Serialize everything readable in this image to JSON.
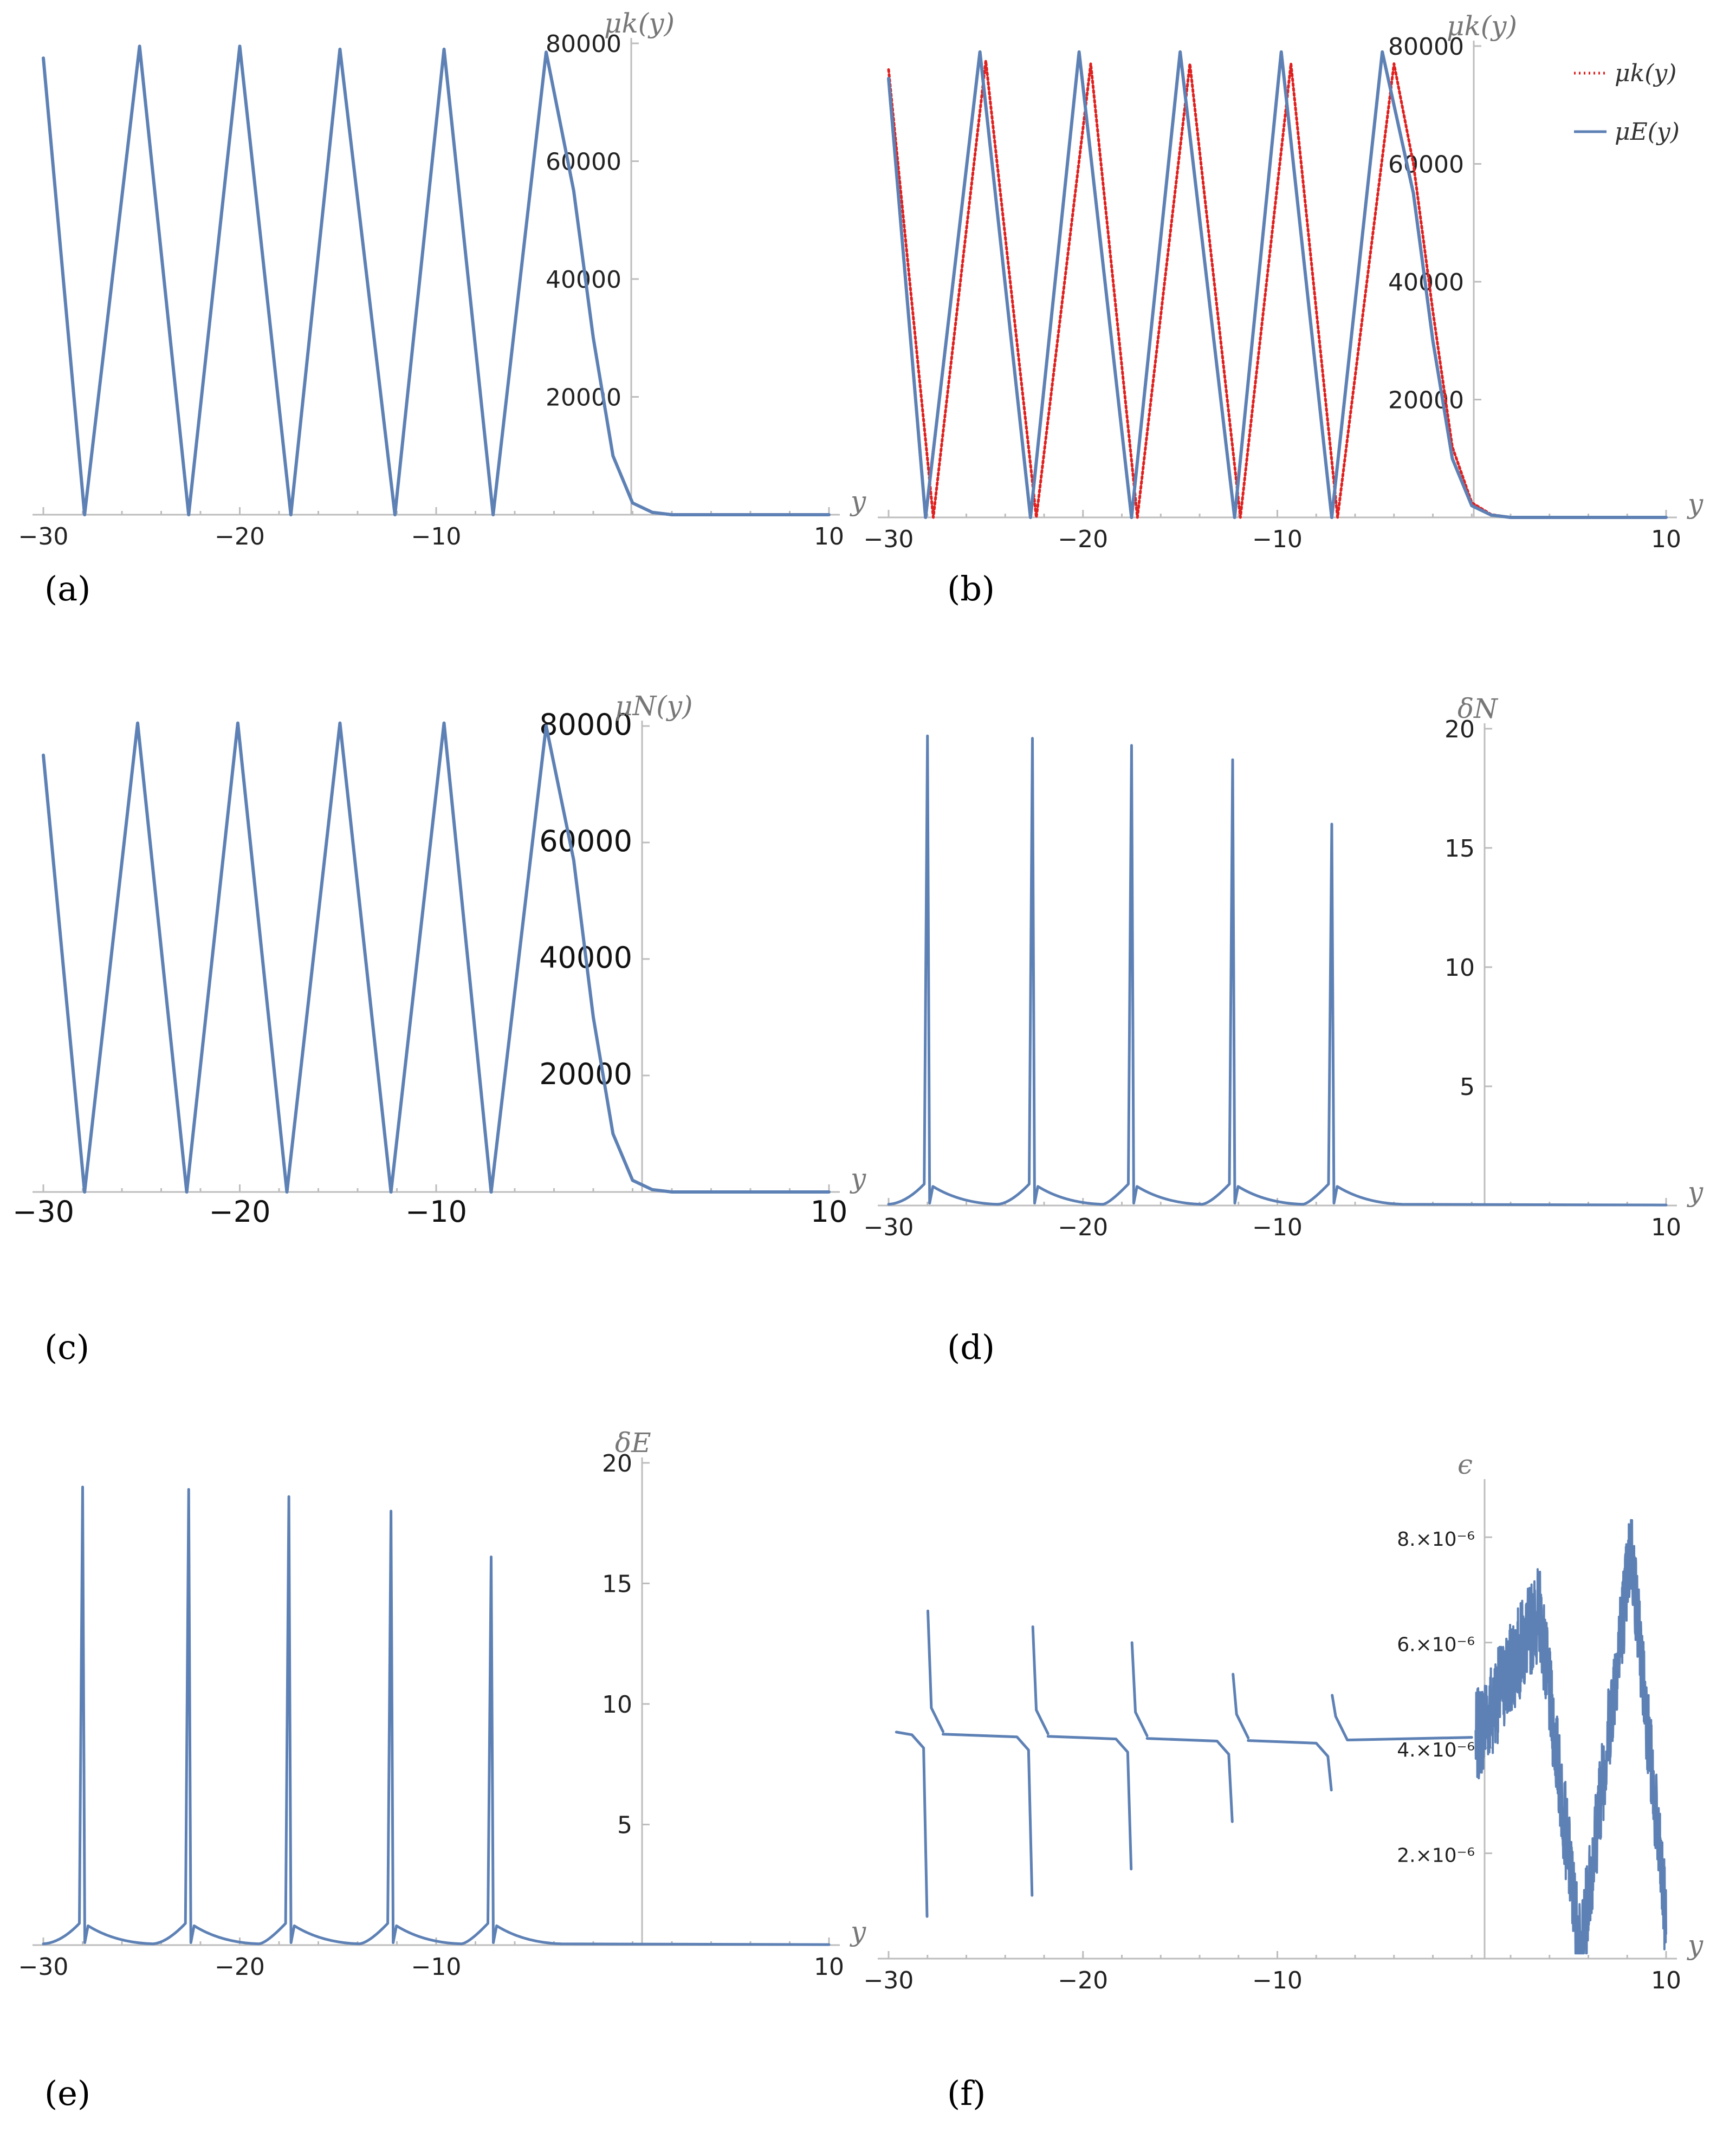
{
  "figure": {
    "panels": [
      {
        "id": "a",
        "label": "(a)",
        "xlabel": "y",
        "ylabel": "μk(y)"
      },
      {
        "id": "b",
        "label": "(b)",
        "xlabel": "y",
        "ylabel": "μk(y)"
      },
      {
        "id": "c",
        "label": "(c)",
        "xlabel": "y",
        "ylabel": "μN(y)"
      },
      {
        "id": "d",
        "label": "(d)",
        "xlabel": "y",
        "ylabel": "δN"
      },
      {
        "id": "e",
        "label": "(e)",
        "xlabel": "y",
        "ylabel": "δE"
      },
      {
        "id": "f",
        "label": "(f)",
        "xlabel": "y",
        "ylabel": "ϵ"
      }
    ],
    "legend_b": [
      {
        "label": "μk(y)",
        "color": "#e0201e",
        "style": "dotted"
      },
      {
        "label": "μE(y)",
        "color": "#5e81b5",
        "style": "solid"
      }
    ]
  },
  "chart_data": [
    {
      "id": "a",
      "type": "line",
      "xlabel": "y",
      "ylabel": "μk(y)",
      "xlim": [
        -30,
        10
      ],
      "ylim": [
        0,
        80000
      ],
      "xticks": [
        "-30",
        "-20",
        "-10",
        "10"
      ],
      "yticks": [
        "20000",
        "40000",
        "60000",
        "80000"
      ],
      "series": [
        {
          "color": "#5e81b5",
          "style": "solid",
          "points": [
            [
              -30,
              77500
            ],
            [
              -27.9,
              0
            ],
            [
              -25.1,
              79500
            ],
            [
              -22.6,
              0
            ],
            [
              -20,
              79500
            ],
            [
              -17.4,
              0
            ],
            [
              -14.9,
              79000
            ],
            [
              -12.1,
              0
            ],
            [
              -9.6,
              79000
            ],
            [
              -7.1,
              0
            ],
            [
              -4.4,
              78500
            ],
            [
              -3,
              55000
            ],
            [
              -2,
              30000
            ],
            [
              -1,
              10000
            ],
            [
              0,
              2000
            ],
            [
              1,
              400
            ],
            [
              2,
              0
            ],
            [
              10,
              0
            ]
          ]
        }
      ]
    },
    {
      "id": "b",
      "type": "line",
      "xlabel": "y",
      "ylabel": "μk(y)",
      "xlim": [
        -30,
        10
      ],
      "ylim": [
        0,
        80000
      ],
      "xticks": [
        "-30",
        "-20",
        "-10",
        "10"
      ],
      "yticks": [
        "20000",
        "40000",
        "60000",
        "80000"
      ],
      "series": [
        {
          "name": "μk(y)",
          "color": "#e0201e",
          "style": "dotted",
          "points": [
            [
              -30,
              76000
            ],
            [
              -27.7,
              0
            ],
            [
              -25,
              77500
            ],
            [
              -22.4,
              0
            ],
            [
              -19.6,
              77000
            ],
            [
              -17.2,
              0
            ],
            [
              -14.5,
              77000
            ],
            [
              -11.9,
              0
            ],
            [
              -9.3,
              77000
            ],
            [
              -6.9,
              0
            ],
            [
              -4,
              77000
            ],
            [
              -3,
              60000
            ],
            [
              -2,
              35000
            ],
            [
              -1,
              12000
            ],
            [
              0,
              2500
            ],
            [
              1,
              500
            ],
            [
              2,
              0
            ],
            [
              10,
              0
            ]
          ]
        },
        {
          "name": "μE(y)",
          "color": "#5e81b5",
          "style": "solid",
          "points": [
            [
              -30,
              74500
            ],
            [
              -28.1,
              0
            ],
            [
              -25.3,
              79000
            ],
            [
              -22.7,
              0
            ],
            [
              -20.2,
              79000
            ],
            [
              -17.5,
              0
            ],
            [
              -15,
              79000
            ],
            [
              -12.2,
              0
            ],
            [
              -9.8,
              79000
            ],
            [
              -7.2,
              0
            ],
            [
              -4.6,
              79000
            ],
            [
              -3,
              55000
            ],
            [
              -2,
              30000
            ],
            [
              -1,
              10000
            ],
            [
              0,
              2000
            ],
            [
              1,
              400
            ],
            [
              2,
              0
            ],
            [
              10,
              0
            ]
          ]
        }
      ]
    },
    {
      "id": "c",
      "type": "line",
      "xlabel": "y",
      "ylabel": "μN(y)",
      "xlim": [
        -30,
        10
      ],
      "ylim": [
        0,
        80000
      ],
      "xticks": [
        "-30",
        "-20",
        "-10",
        "10"
      ],
      "yticks": [
        "20000",
        "40000",
        "60000",
        "80000"
      ],
      "series": [
        {
          "color": "#5e81b5",
          "style": "solid",
          "points": [
            [
              -30,
              75000
            ],
            [
              -27.9,
              0
            ],
            [
              -25.2,
              80500
            ],
            [
              -22.7,
              0
            ],
            [
              -20.1,
              80500
            ],
            [
              -17.6,
              0
            ],
            [
              -14.9,
              80500
            ],
            [
              -12.3,
              0
            ],
            [
              -9.6,
              80500
            ],
            [
              -7.2,
              0
            ],
            [
              -4.4,
              80000
            ],
            [
              -3,
              57000
            ],
            [
              -2,
              30000
            ],
            [
              -1,
              10000
            ],
            [
              0,
              2000
            ],
            [
              1,
              400
            ],
            [
              2,
              0
            ],
            [
              10,
              0
            ]
          ]
        }
      ]
    },
    {
      "id": "d",
      "type": "line",
      "xlabel": "y",
      "ylabel": "δN",
      "xlim": [
        -30,
        10
      ],
      "ylim": [
        0,
        20
      ],
      "xticks": [
        "-30",
        "-20",
        "-10",
        "10"
      ],
      "yticks": [
        "5",
        "10",
        "15",
        "20"
      ],
      "spikes": [
        {
          "x": -28.0,
          "height": 19.7
        },
        {
          "x": -22.6,
          "height": 19.6
        },
        {
          "x": -17.5,
          "height": 19.3
        },
        {
          "x": -12.3,
          "height": 18.7
        },
        {
          "x": -7.2,
          "height": 16.0
        }
      ],
      "series": [
        {
          "color": "#5e81b5",
          "style": "solid"
        }
      ]
    },
    {
      "id": "e",
      "type": "line",
      "xlabel": "y",
      "ylabel": "δE",
      "xlim": [
        -30,
        10
      ],
      "ylim": [
        0,
        20
      ],
      "xticks": [
        "-30",
        "-20",
        "-10",
        "10"
      ],
      "yticks": [
        "5",
        "10",
        "15",
        "20"
      ],
      "spikes": [
        {
          "x": -28.0,
          "height": 19.0
        },
        {
          "x": -22.6,
          "height": 18.9
        },
        {
          "x": -17.5,
          "height": 18.6
        },
        {
          "x": -12.3,
          "height": 18.0
        },
        {
          "x": -7.2,
          "height": 16.1
        }
      ],
      "series": [
        {
          "color": "#5e81b5",
          "style": "solid"
        }
      ]
    },
    {
      "id": "f",
      "type": "line",
      "xlabel": "y",
      "ylabel": "ϵ",
      "xlim": [
        -30,
        10
      ],
      "ylim": [
        0,
        9e-06
      ],
      "xticks": [
        "-30",
        "-20",
        "-10",
        "10"
      ],
      "yticks": [
        "2.×10⁻⁶",
        "4.×10⁻⁶",
        "6.×10⁻⁶",
        "8.×10⁻⁶"
      ],
      "series": [
        {
          "color": "#5e81b5",
          "style": "solid"
        }
      ]
    }
  ]
}
